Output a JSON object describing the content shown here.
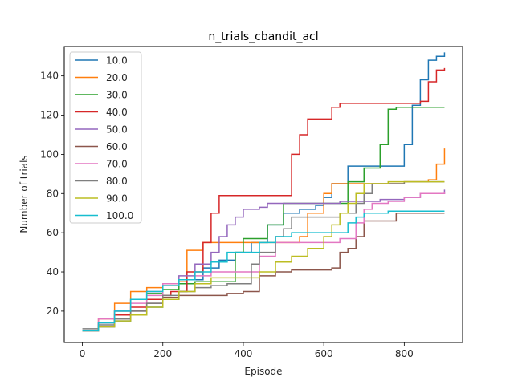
{
  "chart_data": {
    "type": "line",
    "title": "n_trials_cbandit_acl",
    "xlabel": "Episode",
    "ylabel": "Number of trials",
    "xlim": [
      -45,
      945
    ],
    "ylim": [
      4,
      155
    ],
    "xticks": [
      0,
      200,
      400,
      600,
      800
    ],
    "yticks": [
      20,
      40,
      60,
      80,
      100,
      120,
      140
    ],
    "legend_position": "upper-left",
    "grid": false,
    "series": [
      {
        "name": "10.0",
        "color": "#1f77b4",
        "x": [
          0,
          40,
          80,
          120,
          160,
          200,
          240,
          260,
          300,
          340,
          380,
          420,
          460,
          500,
          540,
          580,
          600,
          620,
          660,
          700,
          760,
          800,
          820,
          840,
          860,
          880,
          900
        ],
        "y": [
          10,
          12,
          15,
          18,
          22,
          26,
          30,
          36,
          42,
          46,
          50,
          55,
          64,
          70,
          72,
          74,
          78,
          85,
          94,
          94,
          94,
          105,
          125,
          138,
          148,
          150,
          152
        ]
      },
      {
        "name": "20.0",
        "color": "#ff7f0e",
        "x": [
          0,
          40,
          80,
          120,
          160,
          200,
          240,
          260,
          300,
          340,
          380,
          420,
          460,
          500,
          540,
          560,
          600,
          620,
          660,
          700,
          740,
          800,
          860,
          880,
          900
        ],
        "y": [
          10,
          16,
          24,
          30,
          32,
          33,
          35,
          51,
          55,
          55,
          55,
          55,
          55,
          55,
          58,
          70,
          80,
          85,
          85,
          85,
          85,
          86,
          87,
          95,
          103
        ]
      },
      {
        "name": "30.0",
        "color": "#2ca02c",
        "x": [
          0,
          40,
          80,
          120,
          160,
          200,
          240,
          280,
          320,
          360,
          380,
          400,
          440,
          460,
          500,
          560,
          600,
          640,
          660,
          700,
          740,
          760,
          780,
          820,
          900
        ],
        "y": [
          10,
          14,
          20,
          26,
          29,
          31,
          34,
          35,
          35,
          35,
          50,
          57,
          57,
          64,
          75,
          75,
          75,
          75,
          86,
          93,
          105,
          123,
          124,
          124,
          124
        ]
      },
      {
        "name": "40.0",
        "color": "#d62728",
        "x": [
          0,
          40,
          80,
          120,
          160,
          200,
          220,
          260,
          300,
          320,
          340,
          400,
          460,
          500,
          520,
          540,
          560,
          600,
          620,
          640,
          700,
          800,
          840,
          860,
          880,
          900
        ],
        "y": [
          10,
          14,
          18,
          22,
          26,
          28,
          30,
          40,
          55,
          70,
          79,
          79,
          79,
          79,
          100,
          110,
          118,
          118,
          124,
          126,
          126,
          126,
          127,
          137,
          143,
          144
        ]
      },
      {
        "name": "50.0",
        "color": "#9467bd",
        "x": [
          0,
          40,
          80,
          120,
          160,
          200,
          240,
          280,
          320,
          340,
          360,
          380,
          400,
          440,
          460,
          500,
          560,
          600,
          640,
          700,
          740,
          800,
          840,
          900
        ],
        "y": [
          10,
          14,
          20,
          26,
          30,
          34,
          38,
          44,
          50,
          58,
          64,
          68,
          72,
          73,
          75,
          75,
          75,
          75,
          76,
          76,
          77,
          78,
          80,
          82
        ]
      },
      {
        "name": "60.0",
        "color": "#8c564b",
        "x": [
          0,
          40,
          80,
          120,
          160,
          200,
          240,
          280,
          320,
          360,
          400,
          440,
          480,
          520,
          560,
          600,
          620,
          640,
          660,
          680,
          700,
          740,
          780,
          800,
          840,
          900
        ],
        "y": [
          10,
          12,
          16,
          20,
          24,
          27,
          28,
          28,
          28,
          29,
          30,
          38,
          40,
          41,
          41,
          41,
          42,
          50,
          52,
          58,
          66,
          66,
          70,
          70,
          70,
          70
        ]
      },
      {
        "name": "70.0",
        "color": "#e377c2",
        "x": [
          0,
          40,
          80,
          120,
          160,
          200,
          240,
          280,
          320,
          360,
          400,
          440,
          480,
          520,
          560,
          600,
          640,
          680,
          700,
          720,
          760,
          800,
          840,
          900
        ],
        "y": [
          10,
          16,
          20,
          24,
          28,
          34,
          36,
          38,
          40,
          40,
          40,
          48,
          55,
          55,
          55,
          55,
          57,
          65,
          72,
          75,
          76,
          78,
          80,
          81
        ]
      },
      {
        "name": "80.0",
        "color": "#7f7f7f",
        "x": [
          0,
          40,
          80,
          120,
          160,
          200,
          240,
          280,
          320,
          360,
          400,
          420,
          440,
          480,
          500,
          520,
          560,
          600,
          640,
          680,
          700,
          720,
          760,
          800,
          900
        ],
        "y": [
          11,
          13,
          16,
          20,
          24,
          28,
          30,
          32,
          33,
          34,
          34,
          44,
          50,
          58,
          62,
          68,
          68,
          68,
          70,
          75,
          80,
          85,
          85,
          86,
          86
        ]
      },
      {
        "name": "90.0",
        "color": "#bcbd22",
        "x": [
          0,
          40,
          80,
          120,
          160,
          200,
          240,
          280,
          320,
          360,
          400,
          440,
          480,
          520,
          560,
          600,
          620,
          640,
          660,
          680,
          700,
          740,
          760,
          800,
          900
        ],
        "y": [
          10,
          12,
          15,
          18,
          22,
          26,
          30,
          34,
          37,
          37,
          37,
          40,
          45,
          48,
          52,
          58,
          64,
          70,
          75,
          80,
          85,
          85,
          86,
          86,
          86
        ]
      },
      {
        "name": "100.0",
        "color": "#17becf",
        "x": [
          0,
          40,
          80,
          120,
          160,
          200,
          240,
          280,
          320,
          360,
          400,
          440,
          480,
          520,
          560,
          600,
          640,
          660,
          680,
          700,
          720,
          760,
          800,
          900
        ],
        "y": [
          10,
          14,
          20,
          26,
          30,
          33,
          36,
          40,
          45,
          50,
          50,
          55,
          58,
          60,
          60,
          60,
          60,
          65,
          68,
          70,
          70,
          71,
          71,
          71
        ]
      }
    ]
  }
}
